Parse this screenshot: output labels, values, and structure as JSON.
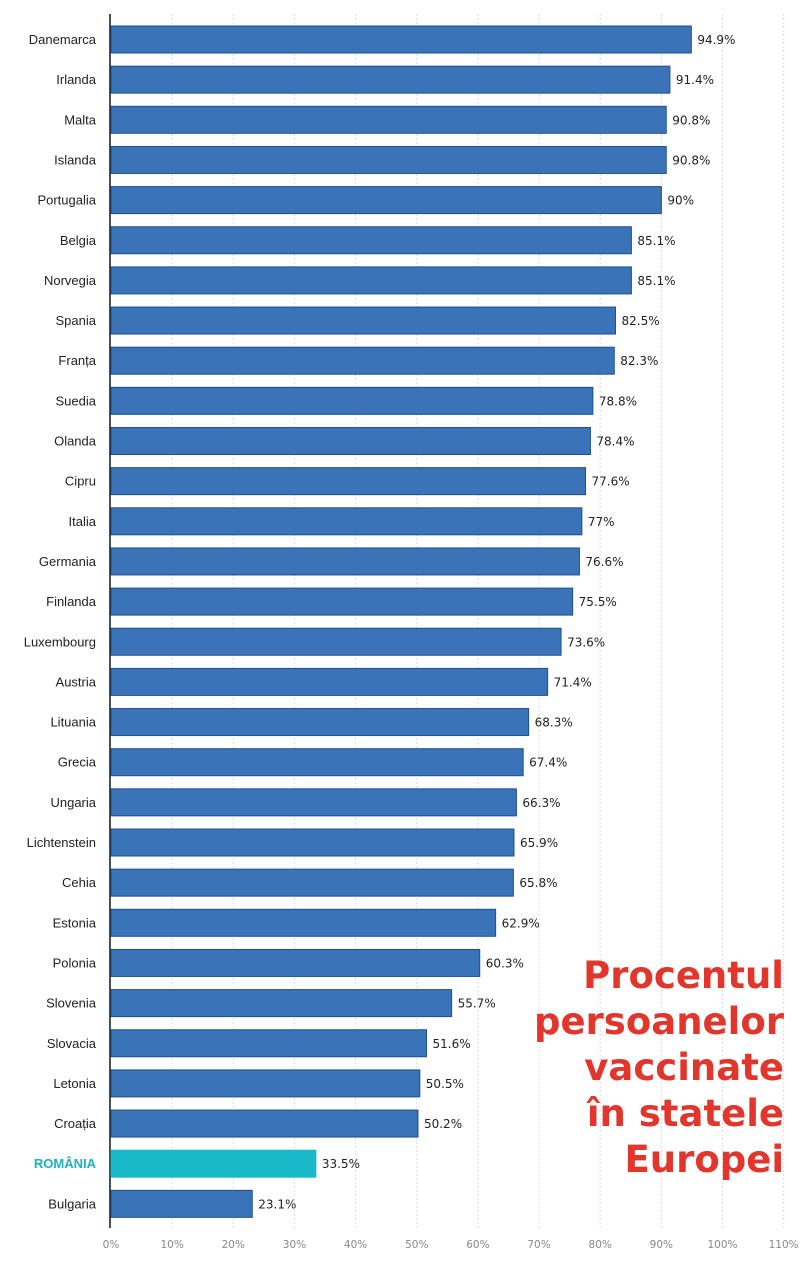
{
  "headline": [
    "Procentul",
    "persoanelor",
    "vaccinate",
    "în statele",
    "Europei"
  ],
  "chart_data": {
    "type": "bar",
    "orientation": "horizontal",
    "categories": [
      "Danemarca",
      "Irlanda",
      "Malta",
      "Islanda",
      "Portugalia",
      "Belgia",
      "Norvegia",
      "Spania",
      "Franța",
      "Suedia",
      "Olanda",
      "Cipru",
      "Italia",
      "Germania",
      "Finlanda",
      "Luxembourg",
      "Austria",
      "Lituania",
      "Grecia",
      "Ungaria",
      "Lichtenstein",
      "Cehia",
      "Estonia",
      "Polonia",
      "Slovenia",
      "Slovacia",
      "Letonia",
      "Croația",
      "ROMÂNIA",
      "Bulgaria"
    ],
    "values": [
      94.9,
      91.4,
      90.8,
      90.8,
      90,
      85.1,
      85.1,
      82.5,
      82.3,
      78.8,
      78.4,
      77.6,
      77,
      76.6,
      75.5,
      73.6,
      71.4,
      68.3,
      67.4,
      66.3,
      65.9,
      65.8,
      62.9,
      60.3,
      55.7,
      51.6,
      50.5,
      50.2,
      33.5,
      23.1
    ],
    "value_labels": [
      "94.9%",
      "91.4%",
      "90.8%",
      "90.8%",
      "90%",
      "85.1%",
      "85.1%",
      "82.5%",
      "82.3%",
      "78.8%",
      "78.4%",
      "77.6%",
      "77%",
      "76.6%",
      "75.5%",
      "73.6%",
      "71.4%",
      "68.3%",
      "67.4%",
      "66.3%",
      "65.9%",
      "65.8%",
      "62.9%",
      "60.3%",
      "55.7%",
      "51.6%",
      "50.5%",
      "50.2%",
      "33.5%",
      "23.1%"
    ],
    "highlight": "ROMÂNIA",
    "xlim": [
      0,
      110
    ],
    "x_ticks": [
      "0%",
      "10%",
      "20%",
      "30%",
      "40%",
      "50%",
      "60%",
      "70%",
      "80%",
      "90%",
      "100%",
      "110%"
    ],
    "grid": true,
    "colors": {
      "bar": "#3b73b9",
      "bar_border": "#1f4f8c",
      "highlight": "#1ab9c8",
      "highlight_label": "#1ab0c6",
      "headline": "#e2352b"
    }
  }
}
